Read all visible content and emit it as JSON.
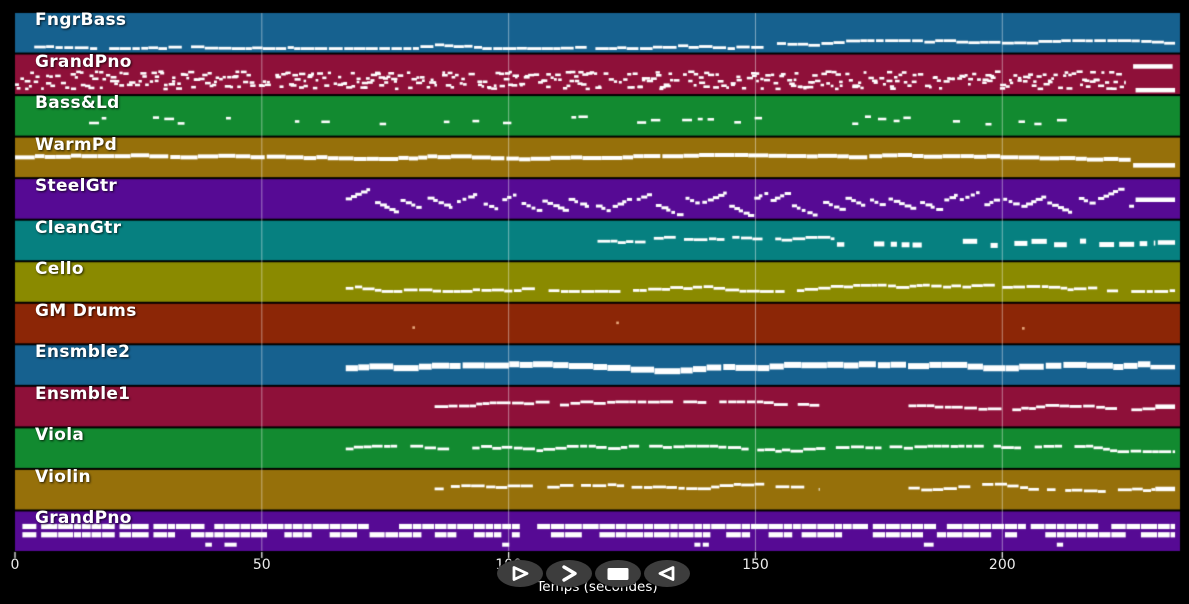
{
  "figure": {
    "background": "#000000",
    "note_color": "#ffffff",
    "grid_color": "rgba(255,255,255,0.45)",
    "tick_color": "#ececec",
    "button_bg": "#3d3d3d"
  },
  "transport": {
    "buttons": [
      {
        "name": "play",
        "icon": "play-outline-icon"
      },
      {
        "name": "fast-forward",
        "icon": "fast-forward-icon"
      },
      {
        "name": "stop",
        "icon": "stop-icon"
      },
      {
        "name": "rewind",
        "icon": "rewind-icon"
      }
    ]
  },
  "chart_data": {
    "type": "heatmap",
    "subtype": "midi-track-piano-roll",
    "xlabel": "Temps (secondes)",
    "x_ticks": [
      0,
      50,
      100,
      150,
      200
    ],
    "x_max": 236,
    "grid": true,
    "tracks": [
      {
        "name": "FngrBass",
        "color": "#16618f",
        "segments": [
          {
            "start": 2.5,
            "end": 235,
            "pattern": "melody",
            "y": 0.8,
            "amp": 0.1
          }
        ]
      },
      {
        "name": "GrandPno",
        "color": "#8e1039",
        "segments": [
          {
            "start": 0,
            "end": 225,
            "pattern": "dense",
            "y": 0.62,
            "amp": 0.22
          },
          {
            "start": 226.5,
            "end": 234.5,
            "pattern": "bar",
            "y": 0.3
          },
          {
            "start": 227,
            "end": 235,
            "pattern": "bar",
            "y": 0.9
          }
        ]
      },
      {
        "name": "Bass&Ld",
        "color": "#128a30",
        "segments": [
          {
            "start": 15,
            "end": 224,
            "pattern": "sparse",
            "y": 0.58,
            "amp": 0.1
          }
        ]
      },
      {
        "name": "WarmPd",
        "color": "#96700a",
        "segments": [
          {
            "start": 0,
            "end": 226,
            "pattern": "pad",
            "y": 0.5,
            "amp": 0.06
          },
          {
            "start": 226.5,
            "end": 235,
            "pattern": "bar",
            "y": 0.7
          }
        ]
      },
      {
        "name": "SteelGtr",
        "color": "#560a94",
        "segments": [
          {
            "start": 67,
            "end": 226,
            "pattern": "strum",
            "y": 0.58,
            "amp": 0.2
          },
          {
            "start": 227,
            "end": 235,
            "pattern": "bar",
            "y": 0.52
          }
        ]
      },
      {
        "name": "CleanGtr",
        "color": "#068080",
        "segments": [
          {
            "start": 118,
            "end": 166,
            "pattern": "melody",
            "y": 0.52,
            "amp": 0.1
          },
          {
            "start": 166.5,
            "end": 168,
            "pattern": "bar",
            "y": 0.6
          },
          {
            "start": 174,
            "end": 184,
            "pattern": "blocks",
            "y": 0.55
          },
          {
            "start": 192,
            "end": 231,
            "pattern": "blocks",
            "y": 0.55
          },
          {
            "start": 231.5,
            "end": 235,
            "pattern": "bar",
            "y": 0.55
          }
        ]
      },
      {
        "name": "Cello",
        "color": "#8a8a00",
        "segments": [
          {
            "start": 67,
            "end": 235,
            "pattern": "melody",
            "y": 0.66,
            "amp": 0.08
          }
        ]
      },
      {
        "name": "GM Drums",
        "color": "#8c2606",
        "segments": [
          {
            "start": 80.5,
            "end": 81,
            "pattern": "dot",
            "y": 0.6,
            "color": "#e8a87c"
          },
          {
            "start": 121.8,
            "end": 122.2,
            "pattern": "dot",
            "y": 0.48,
            "color": "#e8a87c"
          },
          {
            "start": 204,
            "end": 204.4,
            "pattern": "dot",
            "y": 0.62,
            "color": "#e8a87c"
          }
        ]
      },
      {
        "name": "Ensmble2",
        "color": "#16618f",
        "segments": [
          {
            "start": 67,
            "end": 230,
            "pattern": "thick",
            "y": 0.58,
            "amp": 0.1
          },
          {
            "start": 230,
            "end": 235,
            "pattern": "bar",
            "y": 0.55
          }
        ]
      },
      {
        "name": "Ensmble1",
        "color": "#8e1039",
        "segments": [
          {
            "start": 85,
            "end": 163,
            "pattern": "melody",
            "y": 0.5,
            "amp": 0.12
          },
          {
            "start": 181,
            "end": 231,
            "pattern": "melody",
            "y": 0.48,
            "amp": 0.1
          },
          {
            "start": 231,
            "end": 235,
            "pattern": "bar",
            "y": 0.5
          }
        ]
      },
      {
        "name": "Viola",
        "color": "#128a30",
        "segments": [
          {
            "start": 67,
            "end": 235,
            "pattern": "melody",
            "y": 0.52,
            "amp": 0.07
          }
        ]
      },
      {
        "name": "Violin",
        "color": "#96700a",
        "segments": [
          {
            "start": 85,
            "end": 163,
            "pattern": "melody",
            "y": 0.48,
            "amp": 0.12
          },
          {
            "start": 181,
            "end": 231,
            "pattern": "melody",
            "y": 0.46,
            "amp": 0.1
          },
          {
            "start": 231,
            "end": 235,
            "pattern": "bar",
            "y": 0.48
          }
        ]
      },
      {
        "name": "GrandPno",
        "color": "#560a94",
        "segments": [
          {
            "start": 1.5,
            "end": 235,
            "pattern": "chords",
            "y": 0.5,
            "amp": 0.15
          }
        ]
      }
    ]
  }
}
